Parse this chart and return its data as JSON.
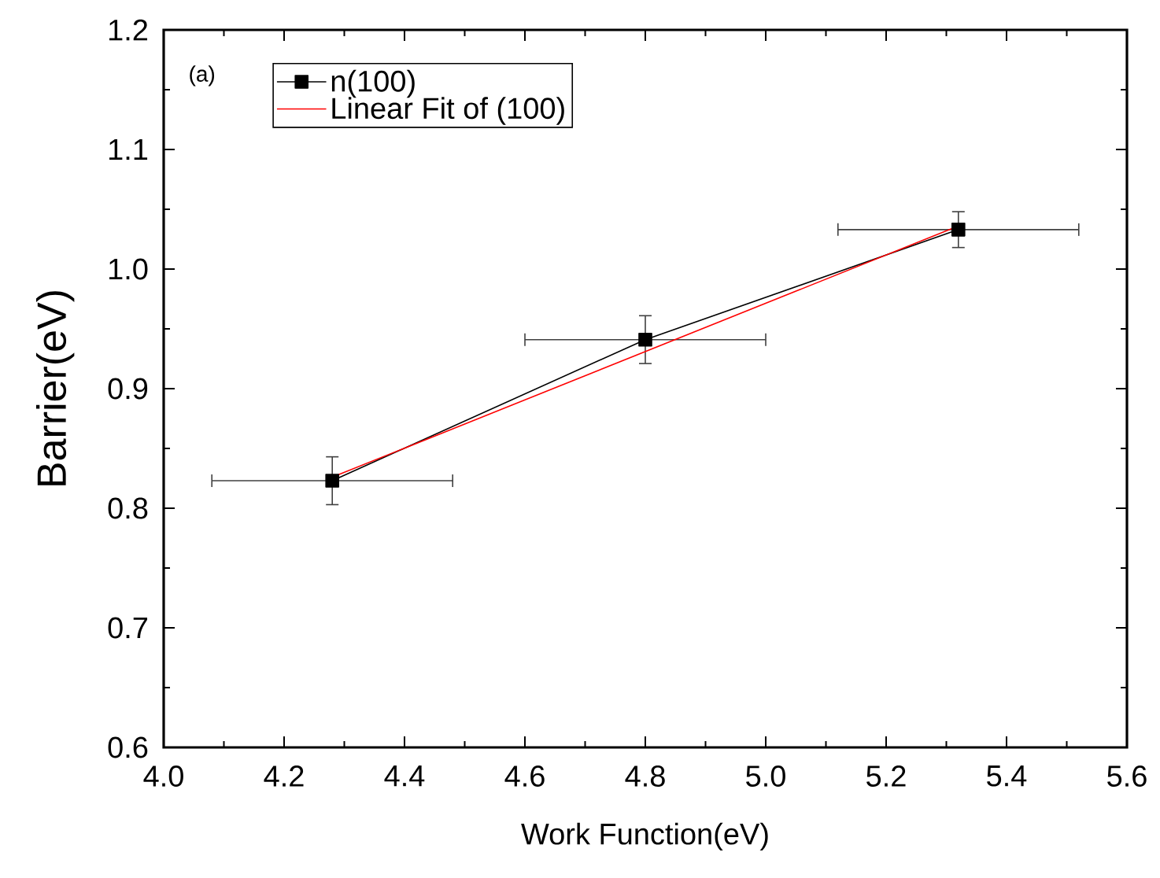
{
  "chart_data": {
    "type": "line",
    "xlabel": "Work Function(eV)",
    "ylabel": "Barrier(eV)",
    "annotations": [
      "(a)"
    ],
    "xlim": [
      4.0,
      5.6
    ],
    "ylim": [
      0.6,
      1.2
    ],
    "xticks": [
      {
        "value": 4.0,
        "label": "4.0"
      },
      {
        "value": 4.2,
        "label": "4.2"
      },
      {
        "value": 4.4,
        "label": "4.4"
      },
      {
        "value": 4.6,
        "label": "4.6"
      },
      {
        "value": 4.8,
        "label": "4.8"
      },
      {
        "value": 5.0,
        "label": "5.0"
      },
      {
        "value": 5.2,
        "label": "5.2"
      },
      {
        "value": 5.4,
        "label": "5.4"
      },
      {
        "value": 5.6,
        "label": "5.6"
      }
    ],
    "yticks": [
      {
        "value": 0.6,
        "label": "0.6"
      },
      {
        "value": 0.7,
        "label": "0.7"
      },
      {
        "value": 0.8,
        "label": "0.8"
      },
      {
        "value": 0.9,
        "label": "0.9"
      },
      {
        "value": 1.0,
        "label": "1.0"
      },
      {
        "value": 1.1,
        "label": "1.1"
      },
      {
        "value": 1.2,
        "label": "1.2"
      }
    ],
    "legend": "top left",
    "series": [
      {
        "name": "n(100)",
        "color": "#000000",
        "marker": "square",
        "x": [
          4.28,
          4.8,
          5.32
        ],
        "values": [
          0.823,
          0.941,
          1.033
        ],
        "errors": [
          0.02,
          0.02,
          0.015
        ],
        "xerrors": [
          0.2,
          0.2,
          0.2
        ]
      },
      {
        "name": "Linear Fit of (100)",
        "color": "#ff0000",
        "marker": "none",
        "x": [
          4.28,
          5.32
        ],
        "values": [
          0.826,
          1.036
        ]
      }
    ]
  }
}
